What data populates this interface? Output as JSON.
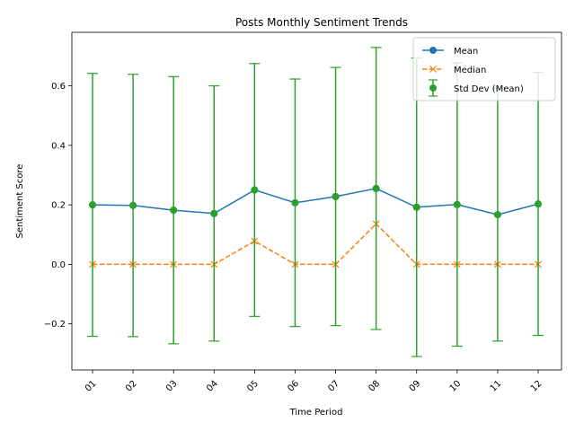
{
  "chart_data": {
    "type": "line",
    "title": "Posts Monthly Sentiment Trends",
    "xlabel": "Time Period",
    "ylabel": "Sentiment Score",
    "categories": [
      "01",
      "02",
      "03",
      "04",
      "05",
      "06",
      "07",
      "08",
      "09",
      "10",
      "11",
      "12"
    ],
    "ylim": [
      -0.355,
      0.78
    ],
    "yticks": [
      "−0.2",
      "0.0",
      "0.2",
      "0.4",
      "0.6"
    ],
    "grid": false,
    "legend_position": "top-right",
    "series": [
      {
        "name": "Mean",
        "color": "#1f77b4",
        "marker": "circle",
        "linestyle": "solid",
        "values": [
          0.2,
          0.198,
          0.182,
          0.171,
          0.25,
          0.207,
          0.228,
          0.255,
          0.192,
          0.201,
          0.167,
          0.203
        ]
      },
      {
        "name": "Median",
        "color": "#ff7f0e",
        "marker": "x",
        "linestyle": "dashed",
        "values": [
          0.0,
          0.0,
          0.0,
          0.0,
          0.078,
          0.0,
          0.0,
          0.136,
          0.0,
          0.0,
          0.0,
          0.0
        ]
      },
      {
        "name": "Std Dev (Mean)",
        "color": "#2ca02c",
        "marker": "circle",
        "type": "errorbar",
        "values": [
          0.2,
          0.198,
          0.182,
          0.171,
          0.25,
          0.207,
          0.228,
          0.255,
          0.192,
          0.201,
          0.167,
          0.203
        ],
        "std": [
          0.442,
          0.441,
          0.449,
          0.429,
          0.425,
          0.416,
          0.434,
          0.474,
          0.502,
          0.476,
          0.425,
          0.442
        ]
      }
    ]
  }
}
